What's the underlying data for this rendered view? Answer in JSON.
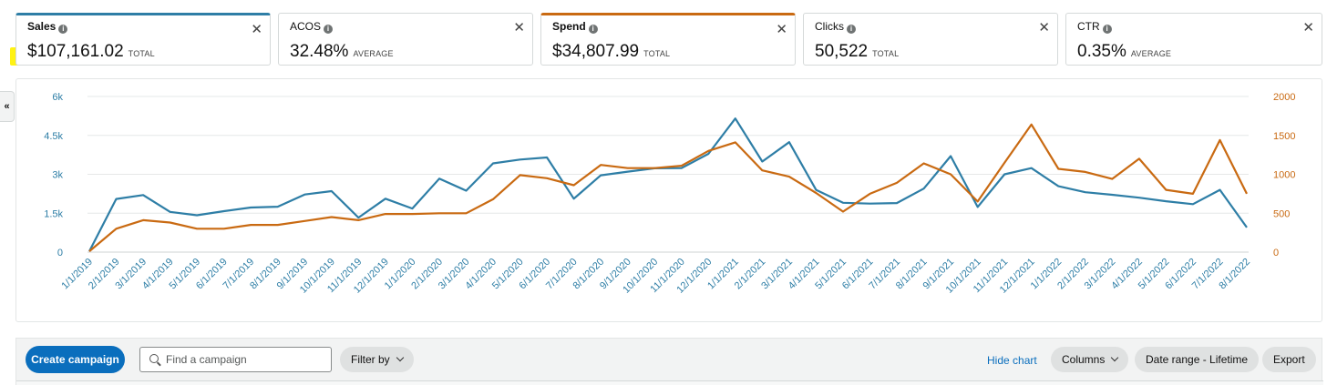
{
  "metrics": {
    "sales": {
      "label": "Sales",
      "value": "$107,161.02",
      "suffix": "TOTAL",
      "color": "#2e7ea6"
    },
    "acos": {
      "label": "ACOS",
      "value": "32.48%",
      "suffix": "AVERAGE"
    },
    "spend": {
      "label": "Spend",
      "value": "$34,807.99",
      "suffix": "TOTAL",
      "color": "#c96a12"
    },
    "clicks": {
      "label": "Clicks",
      "value": "50,522",
      "suffix": "TOTAL"
    },
    "ctr": {
      "label": "CTR",
      "value": "0.35%",
      "suffix": "AVERAGE"
    },
    "close_glyph": "✕",
    "info_glyph": "i"
  },
  "highlight_color": "#fff214",
  "collapse_glyph": "«",
  "chart_data": {
    "type": "line",
    "categories": [
      "1/1/2019",
      "2/1/2019",
      "3/1/2019",
      "4/1/2019",
      "5/1/2019",
      "6/1/2019",
      "7/1/2019",
      "8/1/2019",
      "9/1/2019",
      "10/1/2019",
      "11/1/2019",
      "12/1/2019",
      "1/1/2020",
      "2/1/2020",
      "3/1/2020",
      "4/1/2020",
      "5/1/2020",
      "6/1/2020",
      "7/1/2020",
      "8/1/2020",
      "9/1/2020",
      "10/1/2020",
      "11/1/2020",
      "12/1/2020",
      "1/1/2021",
      "2/1/2021",
      "3/1/2021",
      "4/1/2021",
      "5/1/2021",
      "6/1/2021",
      "7/1/2021",
      "8/1/2021",
      "9/1/2021",
      "10/1/2021",
      "11/1/2021",
      "12/1/2021",
      "1/1/2022",
      "2/1/2022",
      "3/1/2022",
      "4/1/2022",
      "5/1/2022",
      "6/1/2022",
      "7/1/2022",
      "8/1/2022"
    ],
    "series": [
      {
        "name": "Sales",
        "axis": "left",
        "color": "#2e7ea6",
        "values": [
          30,
          2050,
          2200,
          1550,
          1420,
          1580,
          1720,
          1750,
          2220,
          2350,
          1330,
          2060,
          1680,
          2830,
          2370,
          3420,
          3570,
          3650,
          2060,
          2960,
          3100,
          3230,
          3240,
          3790,
          5150,
          3490,
          4240,
          2400,
          1900,
          1870,
          1890,
          2450,
          3700,
          1740,
          3000,
          3240,
          2540,
          2310,
          2210,
          2100,
          1960,
          1850,
          2400,
          950
        ]
      },
      {
        "name": "Spend",
        "axis": "right",
        "color": "#c96a12",
        "values": [
          10,
          300,
          410,
          380,
          300,
          300,
          350,
          350,
          400,
          450,
          410,
          490,
          490,
          500,
          500,
          680,
          990,
          950,
          860,
          1120,
          1080,
          1080,
          1110,
          1300,
          1410,
          1050,
          970,
          760,
          520,
          750,
          890,
          1140,
          1000,
          650,
          1150,
          1640,
          1070,
          1030,
          940,
          1200,
          800,
          750,
          1440,
          750
        ]
      }
    ],
    "y_left": {
      "ticks": [
        "0",
        "1.5k",
        "3k",
        "4.5k",
        "6k"
      ],
      "min": 0,
      "max": 6000,
      "color": "#2e7ea6"
    },
    "y_right": {
      "ticks": [
        "0",
        "500",
        "1000",
        "1500",
        "2000"
      ],
      "min": 0,
      "max": 2000,
      "color": "#c96a12"
    },
    "grid": true
  },
  "toolbar": {
    "create_label": "Create campaign",
    "search_placeholder": "Find a campaign",
    "filter_label": "Filter by",
    "hide_chart_label": "Hide chart",
    "columns_label": "Columns",
    "date_range_label": "Date range - Lifetime",
    "export_label": "Export"
  }
}
